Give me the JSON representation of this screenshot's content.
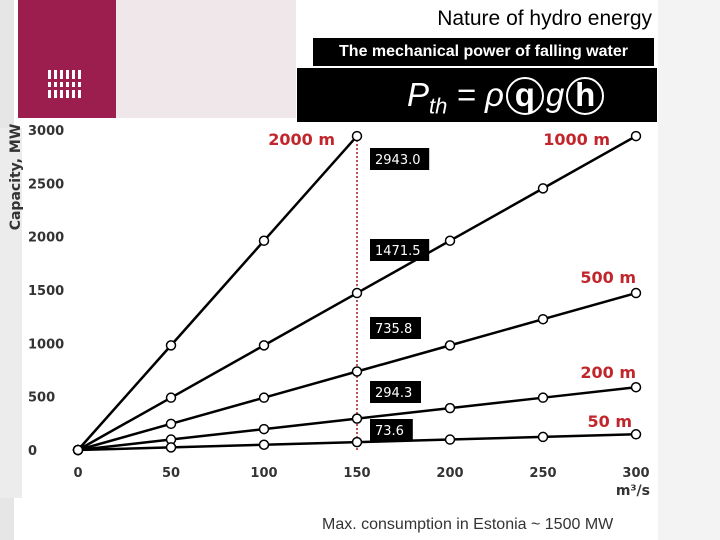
{
  "slide": {
    "title": "Nature of hydro energy",
    "subtitle": "The mechanical power of falling water",
    "formula": {
      "P": "P",
      "sub": "th",
      "eq": " = ρ",
      "q": "q",
      "g": "g",
      "h": "h"
    },
    "footer": "Max. consumption in Estonia ~ 1500 MW"
  },
  "colors": {
    "brand": "#9b1e4f",
    "series": "#000000",
    "label_red": "#c0262b",
    "marker_line": "#a01818"
  },
  "chart_data": {
    "type": "line",
    "ylabel": "Capacity, MW",
    "xlabel": "m³/s",
    "xlim": [
      0,
      300
    ],
    "ylim": [
      0,
      3000
    ],
    "xticks": [
      0,
      50,
      100,
      150,
      200,
      250,
      300
    ],
    "yticks": [
      0,
      500,
      1000,
      1500,
      2000,
      2500,
      3000
    ],
    "x": [
      0,
      50,
      100,
      150,
      200,
      250,
      300
    ],
    "series": [
      {
        "name": "2000 m",
        "values": [
          0,
          981,
          1962,
          2943,
          null,
          null,
          null
        ]
      },
      {
        "name": "1000 m",
        "values": [
          0,
          490.5,
          981,
          1471.5,
          1962,
          2452.5,
          2943
        ]
      },
      {
        "name": "500 m",
        "values": [
          0,
          245.3,
          490.5,
          735.8,
          981,
          1226.3,
          1471.5
        ]
      },
      {
        "name": "200 m",
        "values": [
          0,
          98.1,
          196.2,
          294.3,
          392.4,
          490.5,
          588.6
        ]
      },
      {
        "name": "50 m",
        "values": [
          0,
          24.5,
          49.1,
          73.6,
          98.1,
          122.6,
          147.2
        ]
      }
    ],
    "annotations": [
      {
        "x": 150,
        "y": 2943,
        "text": "2943.0"
      },
      {
        "x": 150,
        "y": 1471.5,
        "text": "1471.5"
      },
      {
        "x": 150,
        "y": 735.8,
        "text": "735.8"
      },
      {
        "x": 150,
        "y": 294.3,
        "text": "294.3"
      },
      {
        "x": 150,
        "y": 73.6,
        "text": "73.6"
      }
    ],
    "grid": false
  }
}
